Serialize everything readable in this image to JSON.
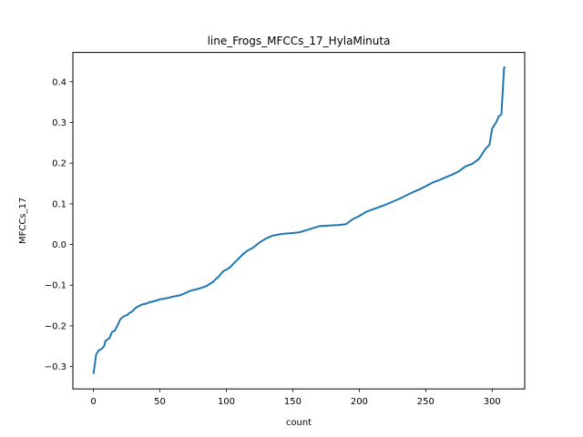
{
  "chart_data": {
    "type": "line",
    "title": "line_Frogs_MFCCs_17_HylaMinuta",
    "xlabel": "count",
    "ylabel": "MFCCs_17",
    "xlim": [
      -15.5,
      324.5
    ],
    "ylim": [
      -0.355,
      0.472
    ],
    "xticks": [
      0,
      50,
      100,
      150,
      200,
      250,
      300
    ],
    "xtick_labels": [
      "0",
      "50",
      "100",
      "150",
      "200",
      "250",
      "300"
    ],
    "yticks": [
      -0.3,
      -0.2,
      -0.1,
      0.0,
      0.1,
      0.2,
      0.3,
      0.4
    ],
    "ytick_labels": [
      "−0.3",
      "−0.2",
      "−0.1",
      "0.0",
      "0.1",
      "0.2",
      "0.3",
      "0.4"
    ],
    "grid": false,
    "color": "#1f77b4",
    "series": [
      {
        "x": [
          0,
          1,
          2,
          4,
          6,
          8,
          9,
          10,
          12,
          14,
          16,
          17,
          18,
          20,
          22,
          24,
          26,
          27,
          29,
          32,
          35,
          37,
          40,
          42,
          45,
          50,
          55,
          60,
          65,
          70,
          72,
          75,
          80,
          85,
          90,
          92,
          94,
          96,
          98,
          100,
          103,
          106,
          110,
          113,
          116,
          120,
          125,
          130,
          135,
          140,
          145,
          150,
          155,
          160,
          165,
          170,
          175,
          180,
          185,
          190,
          195,
          200,
          205,
          210,
          215,
          220,
          225,
          230,
          235,
          240,
          245,
          250,
          255,
          260,
          265,
          270,
          275,
          280,
          285,
          290,
          295,
          298,
          300,
          302,
          303,
          305,
          307,
          309,
          310
        ],
        "y": [
          -0.318,
          -0.295,
          -0.27,
          -0.26,
          -0.257,
          -0.25,
          -0.237,
          -0.235,
          -0.23,
          -0.215,
          -0.212,
          -0.205,
          -0.2,
          -0.185,
          -0.178,
          -0.175,
          -0.172,
          -0.168,
          -0.165,
          -0.155,
          -0.15,
          -0.147,
          -0.145,
          -0.142,
          -0.14,
          -0.135,
          -0.132,
          -0.128,
          -0.125,
          -0.118,
          -0.115,
          -0.112,
          -0.108,
          -0.102,
          -0.092,
          -0.085,
          -0.08,
          -0.072,
          -0.065,
          -0.062,
          -0.055,
          -0.045,
          -0.032,
          -0.022,
          -0.015,
          -0.008,
          0.005,
          0.015,
          0.022,
          0.025,
          0.027,
          0.028,
          0.03,
          0.035,
          0.04,
          0.045,
          0.046,
          0.047,
          0.048,
          0.05,
          0.062,
          0.07,
          0.08,
          0.086,
          0.092,
          0.098,
          0.105,
          0.112,
          0.12,
          0.128,
          0.135,
          0.143,
          0.152,
          0.158,
          0.165,
          0.172,
          0.18,
          0.192,
          0.198,
          0.21,
          0.235,
          0.245,
          0.285,
          0.295,
          0.3,
          0.315,
          0.32,
          0.435,
          0.435
        ]
      }
    ]
  }
}
